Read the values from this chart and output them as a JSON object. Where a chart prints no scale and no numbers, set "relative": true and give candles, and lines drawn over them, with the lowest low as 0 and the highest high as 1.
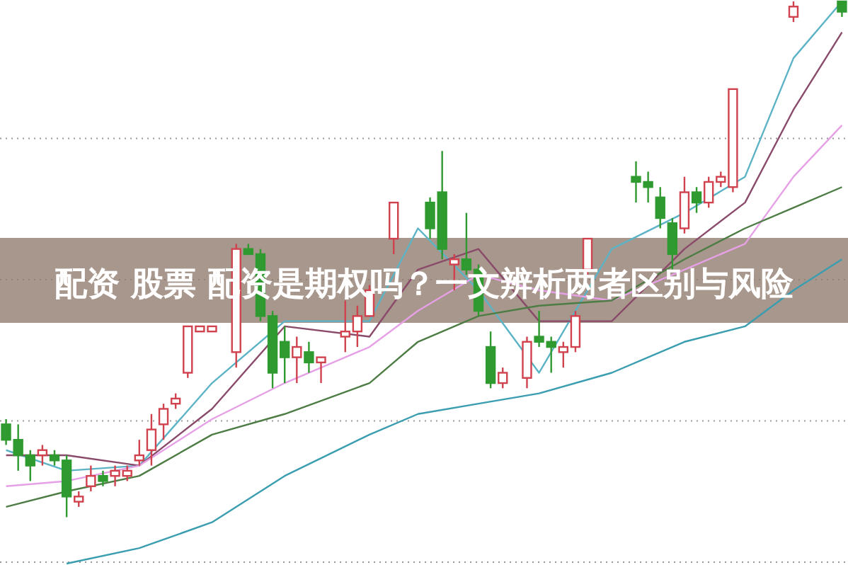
{
  "chart_data": {
    "type": "candlestick",
    "title": "配资 股票 配资是期权吗？一文辨析两者区别与风险",
    "relative": true,
    "grid": "y",
    "categories": [
      null,
      null,
      null,
      null,
      null,
      null,
      null,
      null,
      null,
      null,
      null,
      null,
      null,
      null,
      null,
      null,
      null,
      null,
      null,
      null,
      null,
      null,
      null,
      null,
      null,
      null,
      null,
      null,
      null,
      null,
      null,
      null,
      null,
      null,
      null,
      null,
      null,
      null,
      null,
      null,
      null,
      null,
      null,
      null,
      null,
      null,
      null,
      null,
      null,
      null,
      null,
      null,
      null,
      null,
      null,
      null,
      null,
      null,
      null,
      null,
      null,
      null,
      null,
      null,
      null,
      null,
      null,
      null,
      null,
      null
    ],
    "ohlc": [
      [
        0.18,
        0.19,
        0.14,
        0.15
      ],
      [
        0.15,
        0.18,
        0.09,
        0.12
      ],
      [
        0.12,
        0.13,
        0.07,
        0.1
      ],
      [
        0.12,
        0.14,
        0.1,
        0.13
      ],
      [
        0.12,
        0.13,
        0.1,
        0.11
      ],
      [
        0.11,
        0.12,
        0.0,
        0.04
      ],
      [
        0.03,
        0.05,
        0.02,
        0.04
      ],
      [
        0.06,
        0.1,
        0.05,
        0.08
      ],
      [
        0.08,
        0.09,
        0.06,
        0.07
      ],
      [
        0.08,
        0.1,
        0.06,
        0.09
      ],
      [
        0.08,
        0.1,
        0.07,
        0.09
      ],
      [
        0.11,
        0.15,
        0.1,
        0.12
      ],
      [
        0.13,
        0.2,
        0.1,
        0.17
      ],
      [
        0.18,
        0.22,
        0.15,
        0.21
      ],
      [
        0.22,
        0.24,
        0.21,
        0.23
      ],
      [
        0.28,
        0.37,
        0.27,
        0.37
      ],
      [
        0.36,
        0.37,
        0.36,
        0.37
      ],
      [
        0.36,
        0.37,
        0.36,
        0.37
      ],
      null,
      [
        0.32,
        0.53,
        0.29,
        0.52
      ],
      [
        0.52,
        0.53,
        0.51,
        0.51
      ],
      [
        0.51,
        0.52,
        0.38,
        0.39
      ],
      [
        0.39,
        0.4,
        0.25,
        0.28
      ],
      [
        0.34,
        0.37,
        0.26,
        0.31
      ],
      [
        0.31,
        0.35,
        0.26,
        0.33
      ],
      [
        0.32,
        0.34,
        0.28,
        0.3
      ],
      [
        0.3,
        0.31,
        0.26,
        0.31
      ],
      null,
      [
        0.35,
        0.42,
        0.32,
        0.36
      ],
      [
        0.36,
        0.41,
        0.33,
        0.39
      ],
      [
        0.39,
        0.45,
        0.39,
        0.44
      ],
      null,
      [
        0.54,
        0.61,
        0.51,
        0.61
      ],
      null,
      null,
      [
        0.61,
        0.62,
        0.54,
        0.56
      ],
      [
        0.63,
        0.71,
        0.5,
        0.52
      ],
      [
        0.49,
        0.51,
        0.44,
        0.5
      ],
      [
        0.5,
        0.59,
        0.47,
        0.48
      ],
      [
        0.48,
        0.49,
        0.39,
        0.4
      ],
      [
        0.33,
        0.36,
        0.25,
        0.26
      ],
      [
        0.26,
        0.29,
        0.25,
        0.28
      ],
      null,
      [
        0.27,
        0.35,
        0.25,
        0.34
      ],
      [
        0.35,
        0.4,
        0.33,
        0.34
      ],
      [
        0.34,
        0.35,
        0.28,
        0.33
      ],
      [
        0.32,
        0.34,
        0.29,
        0.33
      ],
      [
        0.33,
        0.4,
        0.32,
        0.39
      ],
      [
        0.48,
        0.54,
        0.47,
        0.54
      ],
      null,
      null,
      null,
      [
        0.66,
        0.69,
        0.61,
        0.65
      ],
      [
        0.65,
        0.67,
        0.61,
        0.64
      ],
      [
        0.62,
        0.64,
        0.56,
        0.58
      ],
      [
        0.57,
        0.58,
        0.48,
        0.51
      ],
      [
        0.56,
        0.66,
        0.55,
        0.63
      ],
      [
        0.63,
        0.64,
        0.59,
        0.61
      ],
      [
        0.61,
        0.66,
        0.6,
        0.65
      ],
      [
        0.65,
        0.67,
        0.64,
        0.66
      ],
      [
        0.64,
        0.83,
        0.63,
        0.83
      ],
      null,
      null,
      null,
      null,
      [
        0.97,
        1.0,
        0.96,
        0.99
      ],
      null,
      null,
      null,
      [
        1.0,
        1.0,
        0.97,
        0.98
      ]
    ],
    "series": [
      {
        "type": "line",
        "color": "#5cb3c6",
        "values": [
          0.13,
          null,
          null,
          null,
          null,
          0.09,
          null,
          null,
          null,
          null,
          null,
          0.1,
          null,
          null,
          null,
          null,
          null,
          0.26,
          null,
          null,
          null,
          null,
          null,
          0.38,
          null,
          null,
          null,
          null,
          null,
          null,
          0.38,
          null,
          null,
          null,
          0.56,
          null,
          null,
          null,
          null,
          0.44,
          null,
          null,
          null,
          null,
          0.28,
          null,
          null,
          null,
          null,
          null,
          0.52,
          null,
          null,
          null,
          null,
          null,
          0.59,
          null,
          null,
          null,
          null,
          0.66,
          null,
          null,
          null,
          0.89,
          null,
          null,
          null,
          1.0
        ]
      },
      {
        "type": "line",
        "color": "#8a4a6a",
        "values": [
          0.12,
          null,
          null,
          null,
          null,
          0.12,
          null,
          null,
          null,
          null,
          null,
          0.1,
          null,
          null,
          null,
          null,
          null,
          0.21,
          null,
          null,
          null,
          null,
          null,
          0.37,
          null,
          null,
          null,
          null,
          null,
          null,
          0.35,
          null,
          null,
          null,
          0.48,
          null,
          null,
          null,
          null,
          0.52,
          null,
          null,
          null,
          null,
          0.38,
          null,
          null,
          null,
          null,
          null,
          0.38,
          null,
          null,
          null,
          null,
          null,
          0.52,
          null,
          null,
          null,
          null,
          0.61,
          null,
          null,
          null,
          0.79,
          null,
          null,
          null,
          0.94
        ]
      },
      {
        "type": "line",
        "color": "#e6a0e6",
        "values": [
          0.06,
          null,
          null,
          null,
          null,
          0.07,
          null,
          null,
          null,
          null,
          null,
          0.1,
          null,
          null,
          null,
          null,
          null,
          0.19,
          null,
          null,
          null,
          null,
          null,
          0.26,
          null,
          null,
          null,
          null,
          null,
          null,
          0.33,
          null,
          null,
          null,
          0.4,
          null,
          null,
          null,
          null,
          0.47,
          null,
          null,
          null,
          null,
          0.44,
          null,
          null,
          null,
          null,
          null,
          0.42,
          null,
          null,
          null,
          null,
          null,
          0.48,
          null,
          null,
          null,
          null,
          0.53,
          null,
          null,
          null,
          0.66,
          null,
          null,
          null,
          0.76
        ]
      },
      {
        "type": "line",
        "color": "#4d7d45",
        "values": [
          0.02,
          null,
          null,
          null,
          null,
          0.05,
          null,
          null,
          null,
          null,
          null,
          0.08,
          null,
          null,
          null,
          null,
          null,
          0.16,
          null,
          null,
          null,
          null,
          null,
          0.2,
          null,
          null,
          null,
          null,
          null,
          null,
          0.26,
          null,
          null,
          null,
          0.34,
          null,
          null,
          null,
          null,
          0.39,
          null,
          null,
          null,
          null,
          0.41,
          null,
          null,
          null,
          null,
          null,
          0.42,
          null,
          null,
          null,
          null,
          null,
          0.5,
          null,
          null,
          null,
          null,
          0.56,
          null,
          null,
          null,
          0.6,
          null,
          null,
          null,
          0.64
        ]
      },
      {
        "type": "line",
        "color": "#3a9db0",
        "values": [
          null,
          null,
          null,
          null,
          null,
          -0.09,
          null,
          null,
          null,
          null,
          null,
          -0.06,
          null,
          null,
          null,
          null,
          null,
          -0.01,
          null,
          null,
          null,
          null,
          null,
          0.08,
          null,
          null,
          null,
          null,
          null,
          null,
          0.16,
          null,
          null,
          null,
          0.2,
          null,
          null,
          null,
          null,
          0.22,
          null,
          null,
          null,
          null,
          0.24,
          null,
          null,
          null,
          null,
          null,
          0.28,
          null,
          null,
          null,
          null,
          null,
          0.34,
          null,
          null,
          null,
          null,
          0.37,
          null,
          null,
          null,
          0.44,
          null,
          null,
          null,
          0.5
        ]
      }
    ]
  }
}
